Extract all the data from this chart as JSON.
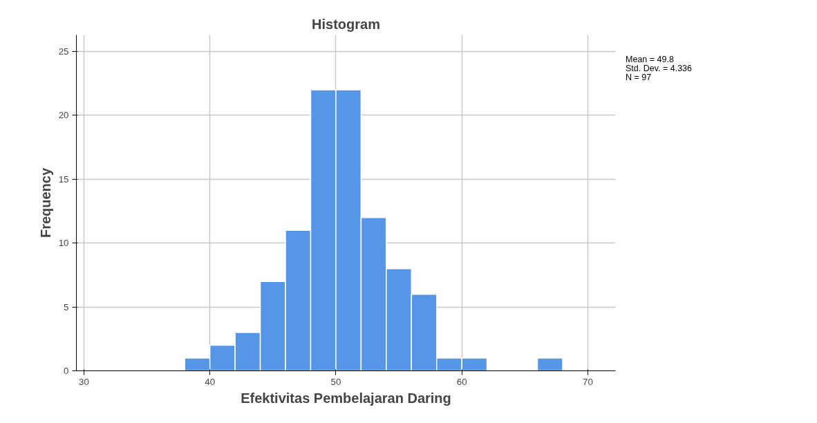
{
  "chart_data": {
    "type": "histogram",
    "title": "Histogram",
    "xlabel": "Efektivitas Pembelajaran Daring",
    "ylabel": "Frequency",
    "bins": [
      38,
      40,
      42,
      44,
      46,
      48,
      50,
      52,
      54,
      56,
      58,
      60,
      62,
      64,
      66,
      68
    ],
    "values": [
      1,
      2,
      3,
      7,
      11,
      22,
      22,
      12,
      8,
      6,
      1,
      1,
      0,
      0,
      1
    ],
    "color": "#5596e6",
    "xlim": [
      29.4,
      72.2
    ],
    "xticks": [
      30,
      40,
      50,
      60,
      70
    ],
    "ylim": [
      0,
      26.3
    ],
    "yticks": [
      0,
      5,
      10,
      15,
      20,
      25
    ],
    "grid": true,
    "annotations": [
      "Mean = 49.8",
      "Std. Dev. = 4.336",
      "N = 97"
    ]
  }
}
